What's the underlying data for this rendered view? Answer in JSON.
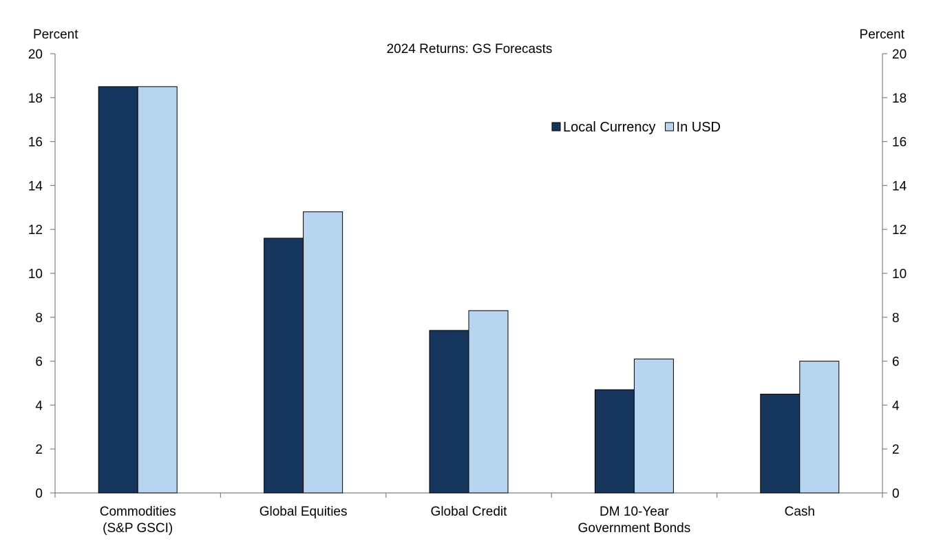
{
  "chart_data": {
    "type": "bar",
    "title": "2024 Returns: GS Forecasts",
    "ylabel_left": "Percent",
    "ylabel_right": "Percent",
    "ylim": [
      0,
      20
    ],
    "yticks": [
      0,
      2,
      4,
      6,
      8,
      10,
      12,
      14,
      16,
      18,
      20
    ],
    "categories": [
      [
        "Commodities",
        "(S&P GSCI)"
      ],
      [
        "Global Equities"
      ],
      [
        "Global Credit"
      ],
      [
        "DM 10-Year",
        "Government Bonds"
      ],
      [
        "Cash"
      ]
    ],
    "series": [
      {
        "name": "Local Currency",
        "color": "#17365d",
        "values": [
          18.5,
          11.6,
          7.4,
          4.7,
          4.5
        ]
      },
      {
        "name": "In USD",
        "color": "#b8d5ef",
        "values": [
          18.5,
          12.8,
          8.3,
          6.1,
          6.0
        ]
      }
    ],
    "legend_position": "top-right",
    "grid": false
  }
}
